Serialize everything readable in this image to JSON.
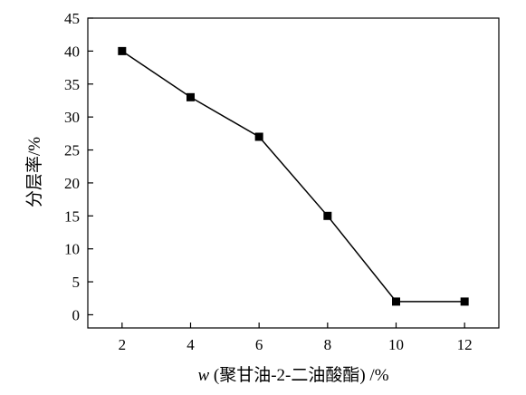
{
  "chart_data": {
    "type": "line",
    "title": "",
    "xlabel": {
      "variable": "w",
      "text": " (聚甘油-2-二油酸酯) /%"
    },
    "ylabel": "分层率/%",
    "xlim": [
      1,
      13
    ],
    "ylim": [
      -2,
      45
    ],
    "x_ticks": [
      2,
      4,
      6,
      8,
      10,
      12
    ],
    "y_ticks": [
      0,
      5,
      10,
      15,
      20,
      25,
      30,
      35,
      40,
      45
    ],
    "grid": false,
    "legend": "none",
    "series": [
      {
        "marker": "square",
        "color": "#000000",
        "x": [
          2,
          4,
          6,
          8,
          10,
          12
        ],
        "y": [
          40,
          33,
          27,
          15,
          2,
          2
        ]
      }
    ]
  }
}
